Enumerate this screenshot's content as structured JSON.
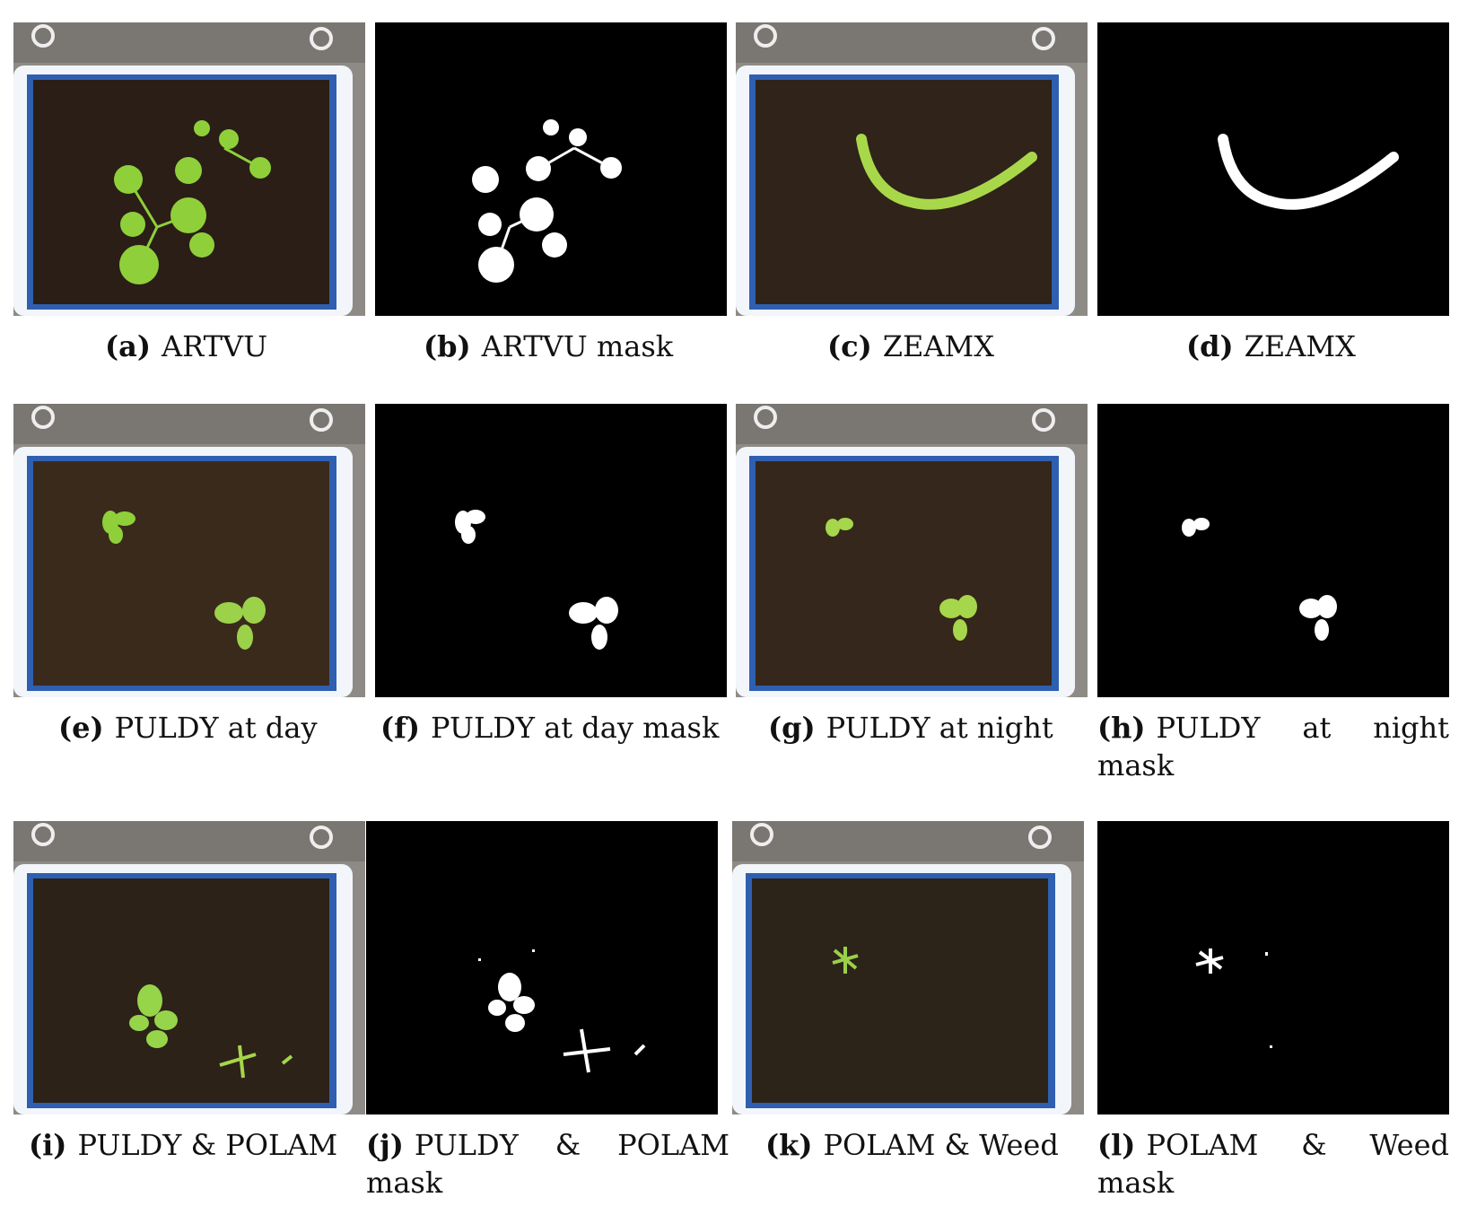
{
  "figure": {
    "panels": [
      {
        "id": "a",
        "label": "(a)",
        "text": "ARTVU",
        "kind": "photo"
      },
      {
        "id": "b",
        "label": "(b)",
        "text": "ARTVU mask",
        "kind": "mask"
      },
      {
        "id": "c",
        "label": "(c)",
        "text": "ZEAMX",
        "kind": "photo"
      },
      {
        "id": "d",
        "label": "(d)",
        "text": "ZEAMX",
        "kind": "mask"
      },
      {
        "id": "e",
        "label": "(e)",
        "text": "PULDY at day",
        "kind": "photo"
      },
      {
        "id": "f",
        "label": "(f)",
        "text": "PULDY at day mask",
        "kind": "mask"
      },
      {
        "id": "g",
        "label": "(g)",
        "text": "PULDY at night",
        "kind": "photo"
      },
      {
        "id": "h",
        "label": "(h)",
        "text": "PULDY at night mask",
        "kind": "mask"
      },
      {
        "id": "i",
        "label": "(i)",
        "text": "PULDY & POLAM",
        "kind": "photo"
      },
      {
        "id": "j",
        "label": "(j)",
        "text": "PULDY & POLAM mask",
        "kind": "mask"
      },
      {
        "id": "k",
        "label": "(k)",
        "text": "POLAM & Weed",
        "kind": "photo"
      },
      {
        "id": "l",
        "label": "(l)",
        "text": "POLAM & Weed mask",
        "kind": "mask"
      }
    ]
  },
  "colors": {
    "tray_rim": "#f2f6fa",
    "tray_blue": "#2f5fb0",
    "soil": "#2a1e16",
    "plant": "#8fd03a",
    "mask_bg": "#000000",
    "mask_fg": "#ffffff"
  }
}
